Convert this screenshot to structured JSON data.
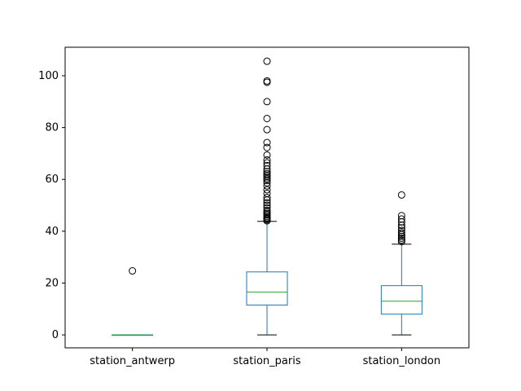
{
  "chart_data": {
    "type": "box",
    "categories": [
      "station_antwerp",
      "station_paris",
      "station_london"
    ],
    "ylim": [
      -5,
      111
    ],
    "yticks": [
      0,
      20,
      40,
      60,
      80,
      100
    ],
    "boxes": [
      {
        "category": "station_antwerp",
        "whisker_low": 0,
        "q1": 0,
        "median": 0,
        "q3": 0,
        "whisker_high": 0,
        "outliers": [
          24.7
        ]
      },
      {
        "category": "station_paris",
        "whisker_low": 0,
        "q1": 11.5,
        "median": 16.5,
        "q3": 24.3,
        "whisker_high": 43.8,
        "outliers": [
          44.0,
          44.4,
          44.8,
          45.2,
          45.7,
          46.3,
          46.8,
          47.4,
          48.0,
          49.0,
          50.0,
          51.0,
          52.0,
          53.0,
          54.6,
          56.0,
          57.5,
          58.7,
          59.6,
          60.3,
          61.0,
          61.6,
          62.2,
          63.0,
          64.0,
          65.3,
          66.4,
          67.5,
          69.4,
          72.3,
          74.2,
          79.2,
          83.5,
          90.0,
          97.5,
          98.0,
          105.6
        ]
      },
      {
        "category": "station_london",
        "whisker_low": 0,
        "q1": 8.0,
        "median": 13.0,
        "q3": 19.0,
        "whisker_high": 35.0,
        "outliers": [
          36.0,
          36.6,
          37.3,
          38.0,
          38.7,
          39.4,
          40.3,
          41.3,
          42.3,
          43.6,
          44.7,
          46.0,
          54.0
        ]
      }
    ],
    "colors": {
      "box": "#1f77b4",
      "median": "#2ca02c",
      "whisker": "#1f77b4",
      "cap": "#000000",
      "flier": "#000000",
      "axis": "#000000"
    },
    "grid": false
  }
}
